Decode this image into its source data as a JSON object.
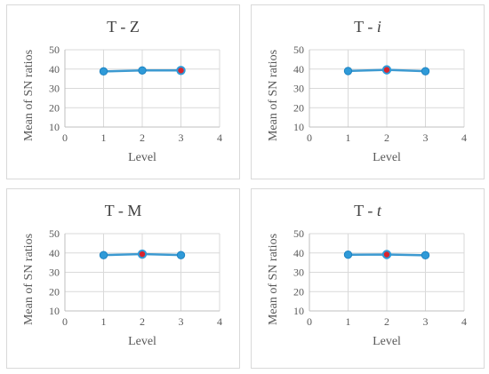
{
  "chart_data": [
    {
      "type": "line",
      "title": "T - Z",
      "title_italic_suffix": false,
      "xlabel": "Level",
      "ylabel": "Mean of SN ratios",
      "xlim": [
        0,
        4
      ],
      "ylim": [
        10,
        50
      ],
      "x_ticks": [
        0,
        1,
        2,
        3,
        4
      ],
      "y_ticks": [
        10,
        20,
        30,
        40,
        50
      ],
      "grid": true,
      "x": [
        1,
        2,
        3
      ],
      "values": [
        38.8,
        39.3,
        39.3
      ],
      "highlight_index": 2
    },
    {
      "type": "line",
      "title": "T - i",
      "title_italic_suffix": true,
      "xlabel": "Level",
      "ylabel": "Mean of SN ratios",
      "xlim": [
        0,
        4
      ],
      "ylim": [
        10,
        50
      ],
      "x_ticks": [
        0,
        1,
        2,
        3,
        4
      ],
      "y_ticks": [
        10,
        20,
        30,
        40,
        50
      ],
      "grid": true,
      "x": [
        1,
        2,
        3
      ],
      "values": [
        39.0,
        39.6,
        38.9
      ],
      "highlight_index": 1
    },
    {
      "type": "line",
      "title": "T - M",
      "title_italic_suffix": false,
      "xlabel": "Level",
      "ylabel": "Mean of SN ratios",
      "xlim": [
        0,
        4
      ],
      "ylim": [
        10,
        50
      ],
      "x_ticks": [
        0,
        1,
        2,
        3,
        4
      ],
      "y_ticks": [
        10,
        20,
        30,
        40,
        50
      ],
      "grid": true,
      "x": [
        1,
        2,
        3
      ],
      "values": [
        38.9,
        39.4,
        38.9
      ],
      "highlight_index": 1
    },
    {
      "type": "line",
      "title": "T - t",
      "title_italic_suffix": true,
      "xlabel": "Level",
      "ylabel": "Mean of SN ratios",
      "xlim": [
        0,
        4
      ],
      "ylim": [
        10,
        50
      ],
      "x_ticks": [
        0,
        1,
        2,
        3,
        4
      ],
      "y_ticks": [
        10,
        20,
        30,
        40,
        50
      ],
      "grid": true,
      "x": [
        1,
        2,
        3
      ],
      "values": [
        39.1,
        39.2,
        38.8
      ],
      "highlight_index": 1
    }
  ],
  "colors": {
    "line": "#3d9ad1",
    "marker": "#2f9ad8",
    "highlight_marker": "#d9242e",
    "gridline": "#d9d9d9",
    "panel_border": "#d9d9d9"
  }
}
